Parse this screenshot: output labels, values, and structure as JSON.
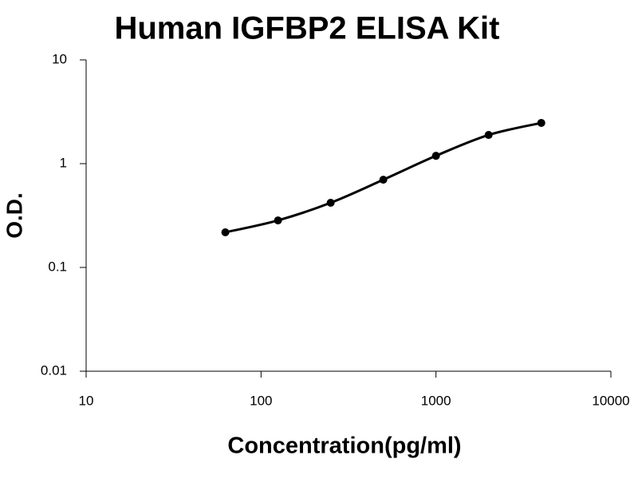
{
  "chart_data": {
    "type": "line",
    "title": "Human IGFBP2 ELISA Kit",
    "x_label": "Concentration(pg/ml)",
    "y_label": "O.D.",
    "x": [
      62.5,
      125,
      250,
      500,
      1000,
      2000,
      4000
    ],
    "series": [
      {
        "color": "#000000",
        "values": [
          0.218,
          0.284,
          0.42,
          0.7,
          1.19,
          1.89,
          2.47
        ]
      }
    ],
    "xlim": [
      10,
      10000
    ],
    "ylim": [
      0.01,
      10
    ],
    "xticks": [
      10,
      100,
      1000,
      10000
    ],
    "yticks": [
      0.01,
      0.1,
      1,
      10
    ],
    "xscale": "log",
    "yscale": "log",
    "smooth": true,
    "markers": true
  }
}
